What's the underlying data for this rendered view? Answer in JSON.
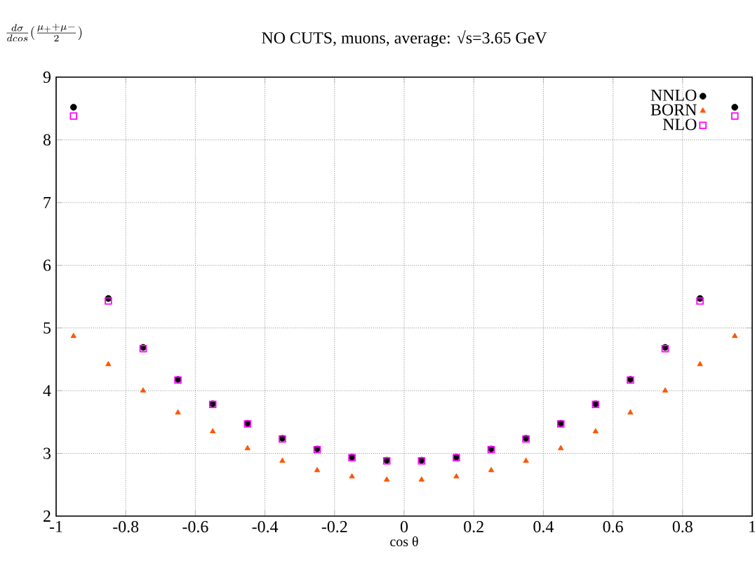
{
  "chart_data": {
    "type": "scatter",
    "title": "NO CUTS, muons, average: √s=3.65 GeV",
    "xlabel": "cos θ",
    "ylabel": "\\frac{d\\sigma}{dcos}(\\frac{\\mu_{+}+\\mu-}{2})",
    "x": [
      -0.95,
      -0.85,
      -0.75,
      -0.65,
      -0.55,
      -0.45,
      -0.35,
      -0.25,
      -0.15,
      -0.05,
      0.05,
      0.15,
      0.25,
      0.35,
      0.45,
      0.55,
      0.65,
      0.75,
      0.85,
      0.95
    ],
    "series": [
      {
        "name": "NNLO",
        "color": "#000000",
        "marker": "circle",
        "values": [
          8.52,
          5.47,
          4.69,
          4.18,
          3.79,
          3.48,
          3.24,
          3.07,
          2.94,
          2.89,
          2.89,
          2.94,
          3.07,
          3.24,
          3.48,
          3.79,
          4.18,
          4.69,
          5.47,
          8.52
        ]
      },
      {
        "name": "BORN",
        "color": "#ff5500",
        "marker": "triangle",
        "values": [
          4.87,
          4.42,
          4.0,
          3.65,
          3.35,
          3.08,
          2.88,
          2.73,
          2.63,
          2.58,
          2.58,
          2.63,
          2.73,
          2.88,
          3.08,
          3.35,
          3.65,
          4.0,
          4.42,
          4.87
        ]
      },
      {
        "name": "NLO",
        "color": "#ff00ff",
        "marker": "square",
        "values": [
          8.38,
          5.43,
          4.67,
          4.17,
          3.78,
          3.47,
          3.23,
          3.06,
          2.93,
          2.88,
          2.88,
          2.93,
          3.06,
          3.23,
          3.47,
          3.78,
          4.17,
          4.67,
          5.43,
          8.38
        ]
      }
    ],
    "xlim": [
      -1,
      1
    ],
    "xticks": [
      -1,
      -0.8,
      -0.6,
      -0.4,
      -0.2,
      0,
      0.2,
      0.4,
      0.6,
      0.8,
      1
    ],
    "ylim": [
      2,
      9
    ],
    "yticks": [
      2,
      3,
      4,
      5,
      6,
      7,
      8,
      9
    ],
    "grid": true,
    "legend": "top right"
  }
}
